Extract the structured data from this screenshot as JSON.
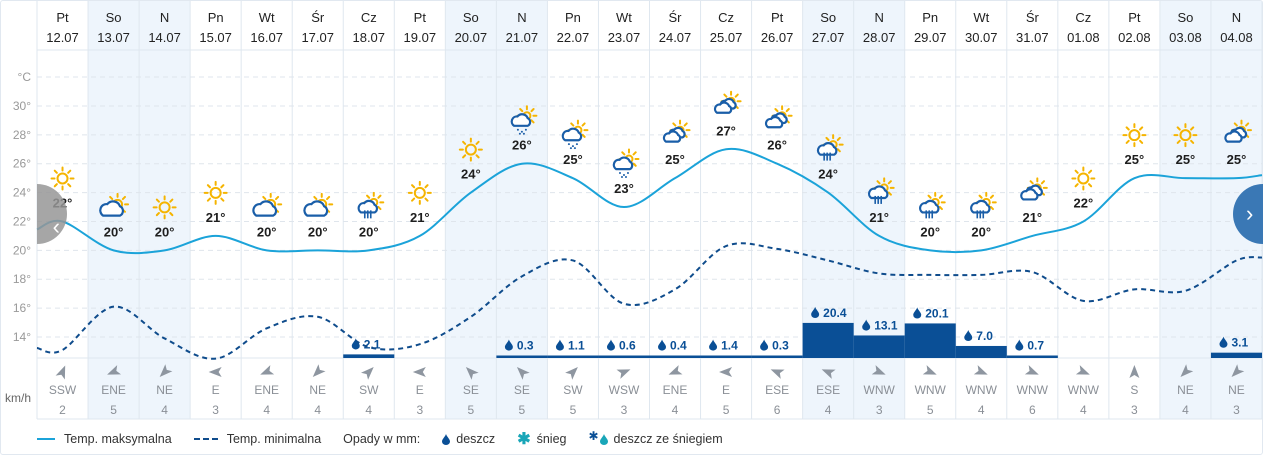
{
  "chart_data": {
    "type": "line",
    "y_unit": "°C",
    "y_ticks": [
      "14°",
      "16°",
      "18°",
      "20°",
      "22°",
      "24°",
      "26°",
      "28°",
      "30°"
    ],
    "ylim": [
      12.5,
      32
    ],
    "grid": true,
    "wind_unit": "km/h",
    "day_names": [
      "Pt",
      "So",
      "N",
      "Pn",
      "Wt",
      "Śr",
      "Cz",
      "Pt",
      "So",
      "N",
      "Pn",
      "Wt",
      "Śr",
      "Cz",
      "Pt",
      "So",
      "N",
      "Pn",
      "Wt",
      "Śr",
      "Cz",
      "Pt",
      "So",
      "N"
    ],
    "categories": [
      "12.07",
      "13.07",
      "14.07",
      "15.07",
      "16.07",
      "17.07",
      "18.07",
      "19.07",
      "20.07",
      "21.07",
      "22.07",
      "23.07",
      "24.07",
      "25.07",
      "26.07",
      "27.07",
      "28.07",
      "29.07",
      "30.07",
      "31.07",
      "01.08",
      "02.08",
      "03.08",
      "04.08"
    ],
    "weekend": [
      false,
      true,
      true,
      false,
      false,
      false,
      false,
      false,
      true,
      true,
      false,
      false,
      false,
      false,
      false,
      true,
      true,
      false,
      false,
      false,
      false,
      false,
      true,
      true
    ],
    "icons": [
      "sun",
      "cloud-sun",
      "sun",
      "sun",
      "cloud-sun",
      "cloud-sun",
      "showers",
      "sun",
      "sun",
      "rain-sun",
      "rain-sun",
      "rain-sun",
      "clouds-sun",
      "clouds-sun",
      "clouds-sun",
      "showers",
      "showers",
      "showers",
      "showers",
      "clouds-sun",
      "sun",
      "sun",
      "sun",
      "clouds-sun"
    ],
    "series": [
      {
        "name": "Temp. maksymalna",
        "color": "#1ba3d9",
        "style": "solid",
        "values": [
          22,
          20,
          20,
          21,
          20,
          20,
          20,
          21,
          24,
          26,
          25,
          23,
          25,
          27,
          26,
          24,
          21,
          20,
          20,
          21,
          22,
          25,
          25,
          25
        ],
        "labels": [
          "22°",
          "20°",
          "20°",
          "21°",
          "20°",
          "20°",
          "20°",
          "21°",
          "24°",
          "26°",
          "25°",
          "23°",
          "25°",
          "27°",
          "26°",
          "24°",
          "21°",
          "20°",
          "20°",
          "21°",
          "22°",
          "25°",
          "25°",
          "25°"
        ]
      },
      {
        "name": "Temp. minimalna",
        "color": "#0f4c8c",
        "style": "dashed",
        "values": [
          13.1,
          16.1,
          13.9,
          12.5,
          14.6,
          15.4,
          13.3,
          13.5,
          15.4,
          18.2,
          19.3,
          16.3,
          17.3,
          20.3,
          20.1,
          19.3,
          18.4,
          18.3,
          18.3,
          18.5,
          16.5,
          17.3,
          17.2,
          19.3
        ]
      }
    ],
    "precipitation": {
      "label": "Opady w mm:",
      "color": "#0a4f96",
      "values": [
        null,
        null,
        null,
        null,
        null,
        null,
        2.1,
        null,
        null,
        0.3,
        1.1,
        0.6,
        0.4,
        1.4,
        0.3,
        20.4,
        13.1,
        20.1,
        7.0,
        0.7,
        null,
        null,
        null,
        3.1
      ],
      "labels": [
        "",
        "",
        "",
        "",
        "",
        "",
        "2.1",
        "",
        "",
        "0.3",
        "1.1",
        "0.6",
        "0.4",
        "1.4",
        "0.3",
        "20.4",
        "13.1",
        "20.1",
        "7.0",
        "0.7",
        "",
        "",
        "",
        "3.1"
      ]
    },
    "wind_dir": [
      "SSW",
      "ENE",
      "NE",
      "E",
      "ENE",
      "NE",
      "SW",
      "E",
      "SE",
      "SE",
      "SW",
      "WSW",
      "ENE",
      "E",
      "ESE",
      "ESE",
      "WNW",
      "WNW",
      "WNW",
      "WNW",
      "WNW",
      "S",
      "NE",
      "NE"
    ],
    "wind_speed": [
      "2",
      "5",
      "4",
      "3",
      "4",
      "4",
      "4",
      "3",
      "5",
      "5",
      "5",
      "3",
      "4",
      "5",
      "6",
      "4",
      "3",
      "5",
      "4",
      "6",
      "4",
      "3",
      "4",
      "3"
    ]
  },
  "legend": {
    "max": "Temp. maksymalna",
    "min": "Temp. minimalna",
    "precip": "Opady w mm:",
    "rain": "deszcz",
    "snow": "śnieg",
    "sleet": "deszcz ze śniegiem"
  },
  "nav": {
    "prev": "‹",
    "next": "›"
  },
  "colors": {
    "weekend": "#eef5fc",
    "grid": "#dfe7ef",
    "sun": "#f5b400",
    "cloud": "#1a5ea8"
  }
}
